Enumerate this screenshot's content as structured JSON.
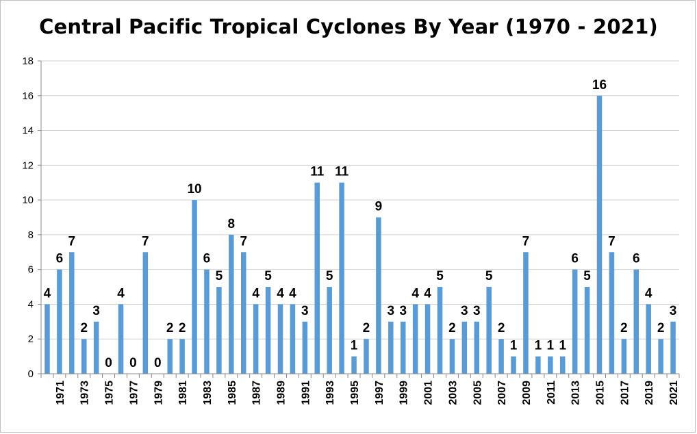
{
  "chart_data": {
    "type": "bar",
    "title": "Central Pacific Tropical Cyclones By Year (1970 - 2021)",
    "xlabel": "",
    "ylabel": "",
    "ylim": [
      0,
      18
    ],
    "yticks": [
      0,
      2,
      4,
      6,
      8,
      10,
      12,
      14,
      16,
      18
    ],
    "grid": true,
    "legend": "none",
    "bar_color": "#5B9BD5",
    "categories": [
      "1970",
      "1971",
      "1972",
      "1973",
      "1974",
      "1975",
      "1976",
      "1977",
      "1978",
      "1979",
      "1980",
      "1981",
      "1982",
      "1983",
      "1984",
      "1985",
      "1986",
      "1987",
      "1988",
      "1989",
      "1990",
      "1991",
      "1992",
      "1993",
      "1994",
      "1995",
      "1996",
      "1997",
      "1998",
      "1999",
      "2000",
      "2001",
      "2002",
      "2003",
      "2004",
      "2005",
      "2006",
      "2007",
      "2008",
      "2009",
      "2010",
      "2011",
      "2012",
      "2013",
      "2014",
      "2015",
      "2016",
      "2017",
      "2018",
      "2019",
      "2020",
      "2021"
    ],
    "shown_tick_labels": [
      "1971",
      "1973",
      "1975",
      "1977",
      "1979",
      "1981",
      "1983",
      "1985",
      "1987",
      "1989",
      "1991",
      "1993",
      "1995",
      "1997",
      "1999",
      "2001",
      "2003",
      "2005",
      "2007",
      "2009",
      "2011",
      "2013",
      "2015",
      "2017",
      "2019",
      "2021"
    ],
    "values": [
      4,
      6,
      7,
      2,
      3,
      0,
      4,
      0,
      7,
      0,
      2,
      2,
      10,
      6,
      5,
      8,
      7,
      4,
      5,
      4,
      4,
      3,
      11,
      5,
      11,
      1,
      2,
      9,
      3,
      3,
      4,
      4,
      5,
      2,
      3,
      3,
      5,
      2,
      1,
      7,
      1,
      1,
      1,
      6,
      5,
      16,
      7,
      2,
      6,
      4,
      2,
      3
    ]
  }
}
